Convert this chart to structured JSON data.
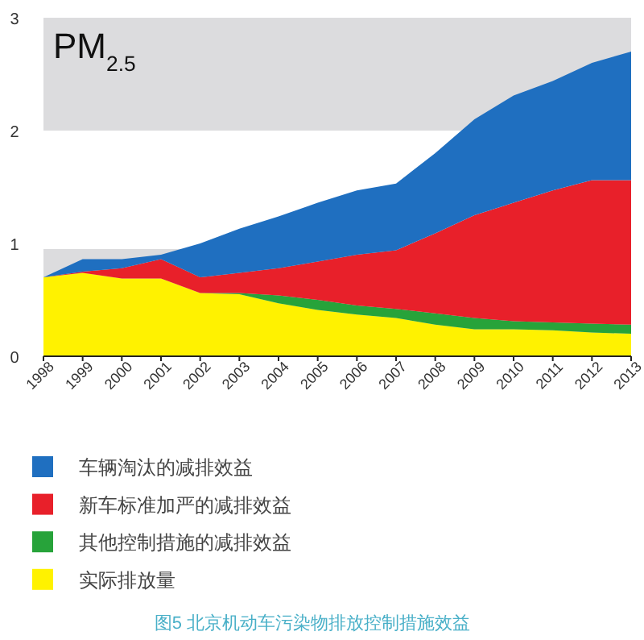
{
  "chart_data": {
    "type": "area",
    "stacked": true,
    "title": "PM$_{2.5}$",
    "x": [
      1998,
      1999,
      2000,
      2001,
      2002,
      2003,
      2004,
      2005,
      2006,
      2007,
      2008,
      2009,
      2010,
      2011,
      2012,
      2013
    ],
    "series": [
      {
        "name": "实际排放量",
        "color": "#fff200",
        "values": [
          0.7,
          0.74,
          0.69,
          0.69,
          0.56,
          0.55,
          0.47,
          0.41,
          0.37,
          0.34,
          0.28,
          0.24,
          0.24,
          0.23,
          0.21,
          0.2
        ]
      },
      {
        "name": "其他控制措施的减排效益",
        "color": "#27a33a",
        "values": [
          0,
          0,
          0,
          0,
          0,
          0.01,
          0.07,
          0.09,
          0.08,
          0.08,
          0.1,
          0.1,
          0.07,
          0.07,
          0.08,
          0.08
        ]
      },
      {
        "name": "新车标准加严的减排效益",
        "color": "#e8202a",
        "values": [
          0,
          0.01,
          0.09,
          0.17,
          0.14,
          0.18,
          0.24,
          0.34,
          0.45,
          0.52,
          0.71,
          0.91,
          1.05,
          1.17,
          1.27,
          1.28
        ]
      },
      {
        "name": "车辆淘汰的减排效益",
        "color": "#1f6fc0",
        "values": [
          0,
          0.11,
          0.08,
          0.04,
          0.3,
          0.39,
          0.46,
          0.52,
          0.57,
          0.59,
          0.71,
          0.85,
          0.95,
          0.97,
          1.04,
          1.14
        ]
      }
    ],
    "xlim": [
      1998,
      2013
    ],
    "ylim": [
      0,
      3
    ],
    "xticks": [
      1998,
      1999,
      2000,
      2001,
      2002,
      2003,
      2004,
      2005,
      2006,
      2007,
      2008,
      2009,
      2010,
      2011,
      2012,
      2013
    ],
    "yticks": [
      0,
      1,
      2,
      3
    ],
    "bands": [
      {
        "axis": "y",
        "from": 2,
        "to": 3,
        "color": "#dcdcde"
      },
      {
        "axis": "y",
        "from": 0,
        "to": 0.95,
        "color": "#dcdcde"
      }
    ],
    "legend": "bottom",
    "annotations": [
      "图5 北京机动车污染物排放控制措施效益"
    ]
  }
}
